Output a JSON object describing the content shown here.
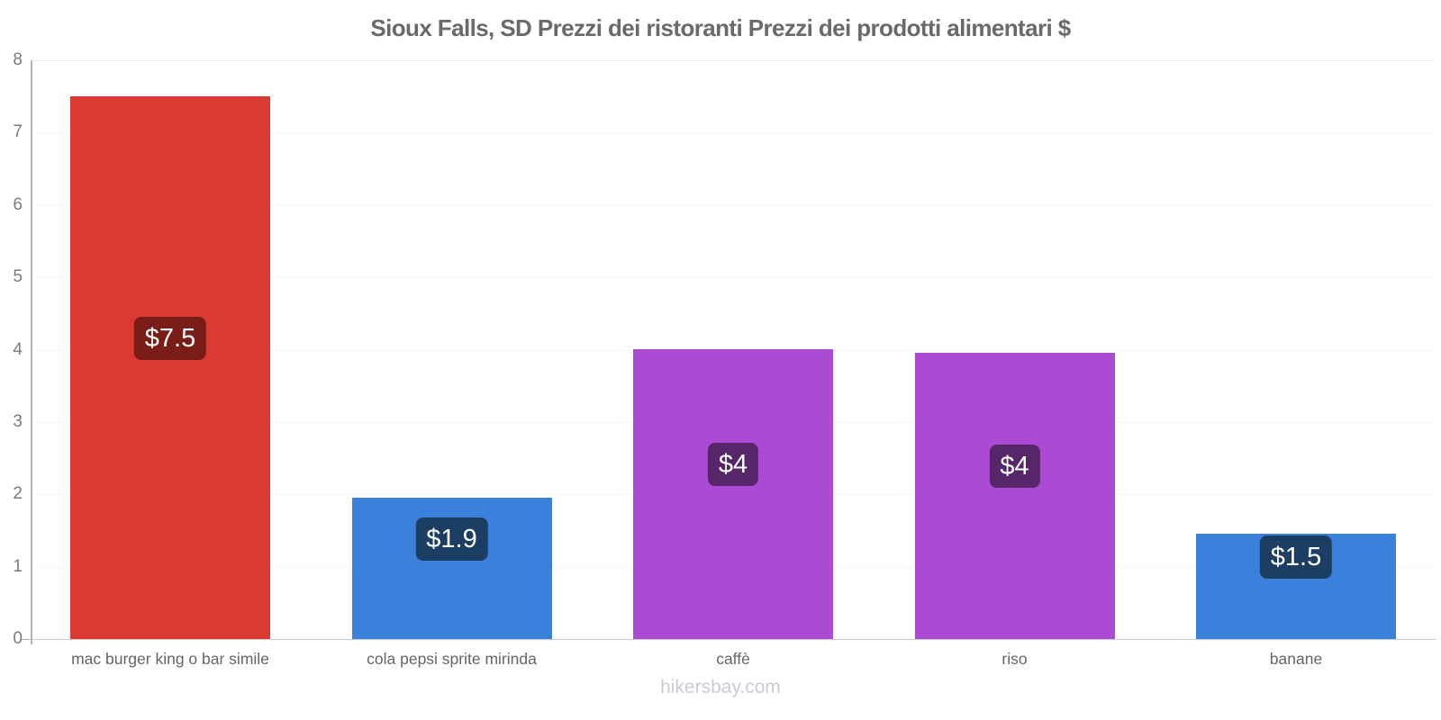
{
  "title": "Sioux Falls, SD Prezzi dei ristoranti Prezzi dei prodotti alimentari $",
  "footer": "hikersbay.com",
  "chart_data": {
    "type": "bar",
    "title": "Sioux Falls, SD Prezzi dei ristoranti Prezzi dei prodotti alimentari $",
    "categories": [
      "mac burger king o bar simile",
      "cola pepsi sprite mirinda",
      "caffè",
      "riso",
      "banane"
    ],
    "values": [
      7.5,
      1.95,
      4,
      3.96,
      1.46
    ],
    "value_labels": [
      "$7.5",
      "$1.9",
      "$4",
      "$4",
      "$1.5"
    ],
    "bar_colors": [
      "#db3a32",
      "#3a81dc",
      "#ab4ad3",
      "#ab4ad3",
      "#3a81dc"
    ],
    "value_label_bg": [
      "#7a1d19",
      "#1d3e63",
      "#572569",
      "#572569",
      "#1d3e63"
    ],
    "xlabel": "",
    "ylabel": "",
    "ylim": [
      0,
      8
    ],
    "yticks": [
      0,
      1,
      2,
      3,
      4,
      5,
      6,
      7,
      8
    ],
    "grid": true,
    "legend": false,
    "watermark": "hikersbay.com"
  },
  "style": {
    "axis_color": "#b3b3b3",
    "x_axis_color": "#c9c9c9",
    "grid_color": "#f7f7f7",
    "top_grid_color": "#ebebeb",
    "tick_label_color": "#7b7b7b",
    "category_label_color": "#656565",
    "title_color": "#6a6a6a",
    "footer_color": "#c8ccd4"
  }
}
